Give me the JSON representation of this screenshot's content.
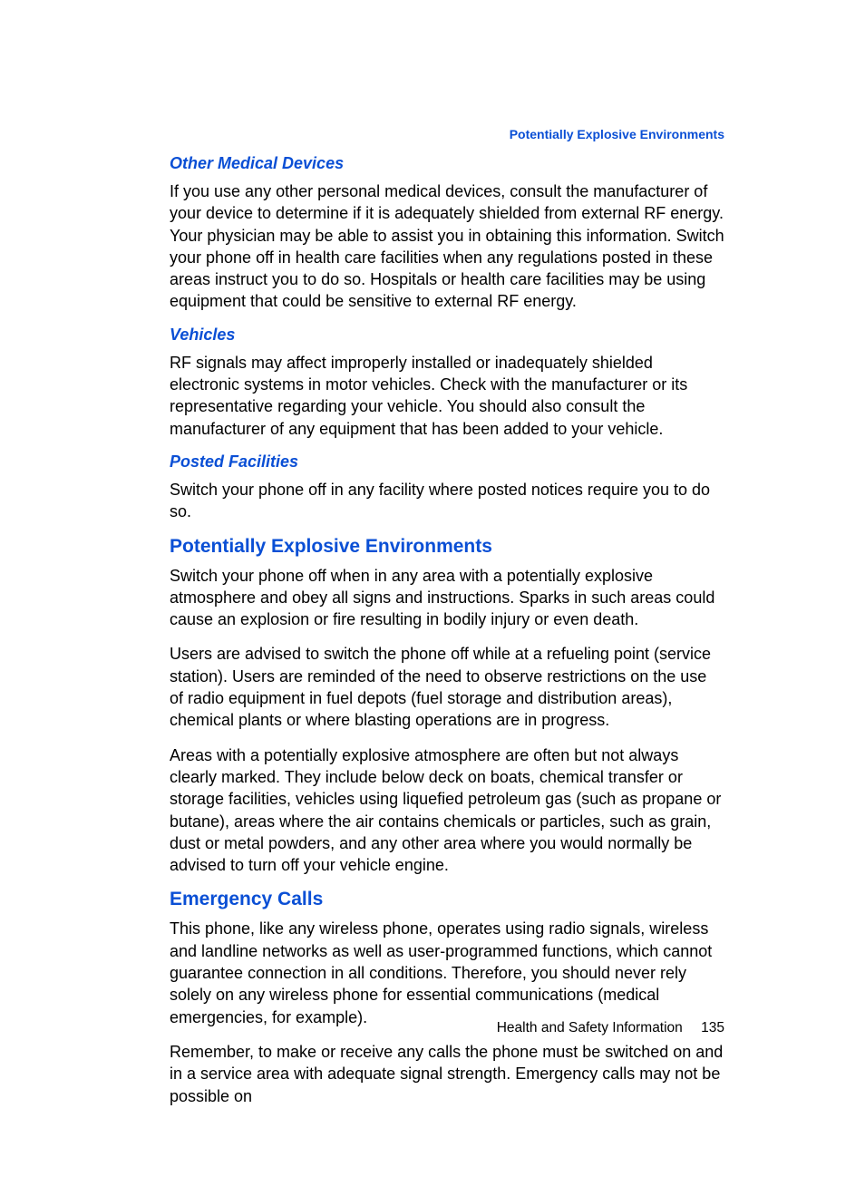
{
  "colors": {
    "accent_blue": "#0a4fd5",
    "body_text": "#000000",
    "background": "#ffffff"
  },
  "typography": {
    "running_header_fontsize": 14,
    "sub_heading_fontsize": 18,
    "main_heading_fontsize": 21,
    "body_fontsize": 18,
    "footer_fontsize": 15.5,
    "body_line_height": 1.35
  },
  "running_header": "Potentially Explosive Environments",
  "sections": [
    {
      "key": "other_medical",
      "heading": "Other Medical Devices",
      "heading_type": "sub",
      "paragraphs": [
        "If you use any other personal medical devices, consult the manufacturer of your device to determine if it is adequately shielded from external RF energy. Your physician may be able to assist you in obtaining this information. Switch your phone off in health care facilities when any regulations posted in these areas instruct you to do so. Hospitals or health care facilities may be using equipment that could be sensitive to external RF energy."
      ]
    },
    {
      "key": "vehicles",
      "heading": "Vehicles",
      "heading_type": "sub",
      "paragraphs": [
        "RF signals may affect improperly installed or inadequately shielded electronic systems in motor vehicles. Check with the manufacturer or its representative regarding your vehicle. You should also consult the manufacturer of any equipment that has been added to your vehicle."
      ]
    },
    {
      "key": "posted_facilities",
      "heading": "Posted Facilities",
      "heading_type": "sub",
      "paragraphs": [
        "Switch your phone off in any facility where posted notices require you to do so."
      ]
    },
    {
      "key": "explosive",
      "heading": "Potentially Explosive Environments",
      "heading_type": "main",
      "paragraphs": [
        "Switch your phone off when in any area with a potentially explosive atmosphere and obey all signs and instructions. Sparks in such areas could cause an explosion or fire resulting in bodily injury or even death.",
        "Users are advised to switch the phone off while at a refueling point (service station). Users are reminded of the need to observe restrictions on the use of radio equipment in fuel depots (fuel storage and distribution areas), chemical plants or where blasting operations are in progress.",
        "Areas with a potentially explosive atmosphere are often but not always clearly marked. They include below deck on boats, chemical transfer or storage facilities, vehicles using liquefied petroleum gas (such as propane or butane), areas where the air contains chemicals or particles, such as grain, dust or metal powders, and any other area where you would normally be advised to turn off your vehicle engine."
      ]
    },
    {
      "key": "emergency",
      "heading": "Emergency Calls",
      "heading_type": "main",
      "paragraphs": [
        "This phone, like any wireless phone, operates using radio signals, wireless and landline networks as well as user-programmed functions, which cannot guarantee connection in all conditions. Therefore, you should never rely solely on any wireless phone for essential communications (medical emergencies, for example).",
        "Remember, to make or receive any calls the phone must be switched on and in a service area with adequate signal strength. Emergency calls may not be possible on"
      ]
    }
  ],
  "footer": {
    "label": "Health and Safety Information",
    "page_number": "135"
  }
}
